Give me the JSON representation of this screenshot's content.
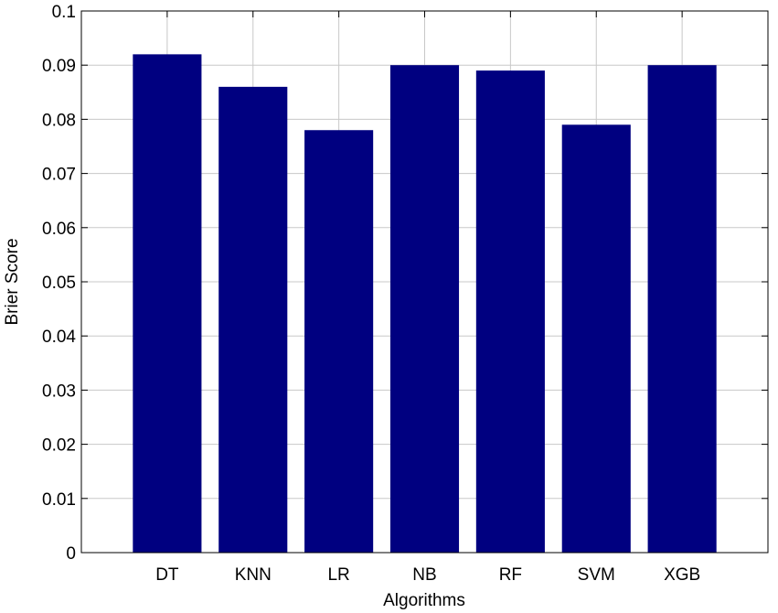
{
  "chart_data": {
    "type": "bar",
    "x_label": "Algorithms",
    "y_label": "Brier Score",
    "categories": [
      "DT",
      "KNN",
      "LR",
      "NB",
      "RF",
      "SVM",
      "XGB"
    ],
    "values": [
      0.092,
      0.086,
      0.078,
      0.09,
      0.089,
      0.079,
      0.09
    ],
    "color": "#000080",
    "ylim": [
      0,
      0.1
    ],
    "yticks": [
      0,
      0.01,
      0.02,
      0.03,
      0.04,
      0.05,
      0.06,
      0.07,
      0.08,
      0.09,
      0.1
    ],
    "grid": true
  }
}
